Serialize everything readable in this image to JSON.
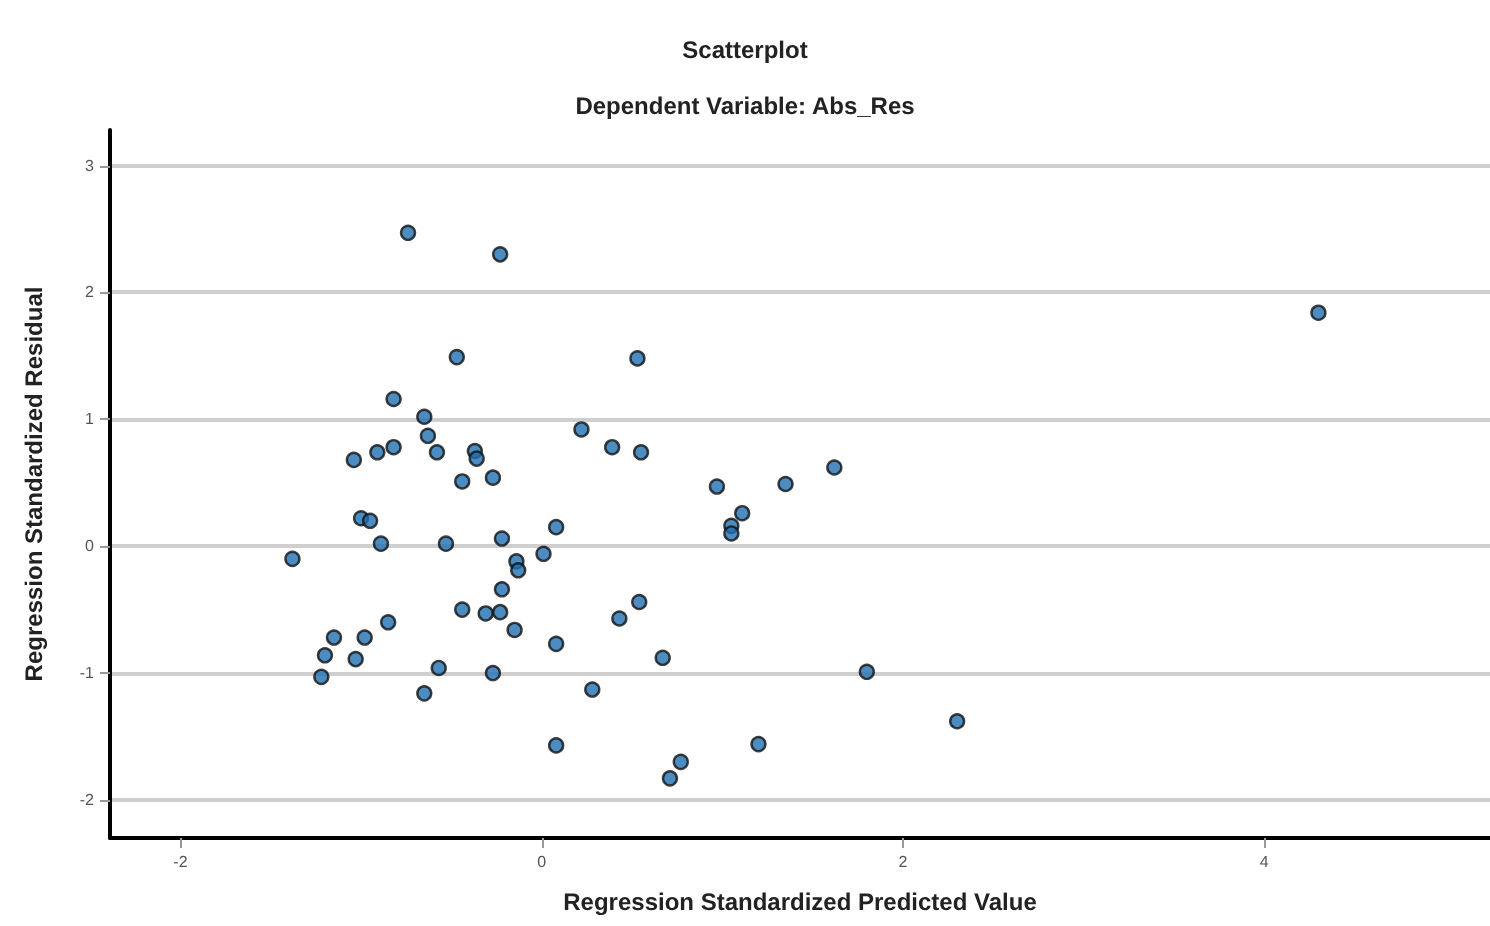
{
  "chart_data": {
    "type": "scatter",
    "title": "Scatterplot",
    "subtitle": "Dependent Variable: Abs_Res",
    "xlabel": "Regression Standardized Predicted Value",
    "ylabel": "Regression Standardized Residual",
    "xlim": [
      -2.39,
      5.25
    ],
    "ylim": [
      -2.3,
      3.28
    ],
    "xticks": [
      -2,
      0,
      2,
      4
    ],
    "yticks": [
      -2,
      -1,
      0,
      1,
      2,
      3
    ],
    "grid": "y",
    "marker": "circle",
    "series": [
      {
        "color": "#1f6fb0",
        "x": [
          -0.74,
          -0.23,
          -0.47,
          -0.82,
          -0.65,
          -0.63,
          -1.04,
          -0.91,
          -0.82,
          -0.58,
          -0.37,
          -0.36,
          -0.44,
          -0.27,
          -1.0,
          -0.95,
          -0.89,
          -1.38,
          -0.53,
          -0.22,
          0.08,
          -0.14,
          -0.13,
          0.01,
          -0.22,
          -0.44,
          -0.31,
          -0.23,
          -0.15,
          0.08,
          -0.85,
          -1.15,
          -0.98,
          -1.2,
          -1.03,
          -1.22,
          -0.57,
          -0.27,
          -0.65,
          0.08,
          0.53,
          0.22,
          0.39,
          0.55,
          0.97,
          1.35,
          1.62,
          1.11,
          1.05,
          1.05,
          0.54,
          0.43,
          0.67,
          0.28,
          1.8,
          2.3,
          1.2,
          0.77,
          0.71,
          4.3
        ],
        "values": [
          2.47,
          2.3,
          1.49,
          1.16,
          1.02,
          0.87,
          0.68,
          0.74,
          0.78,
          0.74,
          0.75,
          0.69,
          0.51,
          0.54,
          0.22,
          0.2,
          0.02,
          -0.1,
          0.02,
          0.06,
          0.15,
          -0.12,
          -0.19,
          -0.06,
          -0.34,
          -0.5,
          -0.53,
          -0.52,
          -0.66,
          -0.77,
          -0.6,
          -0.72,
          -0.72,
          -0.86,
          -0.89,
          -1.03,
          -0.96,
          -1.0,
          -1.16,
          -1.57,
          1.48,
          0.92,
          0.78,
          0.74,
          0.47,
          0.49,
          0.62,
          0.26,
          0.16,
          0.1,
          -0.44,
          -0.57,
          -0.88,
          -1.13,
          -0.99,
          -1.38,
          -1.56,
          -1.7,
          -1.83,
          1.84
        ]
      }
    ]
  }
}
